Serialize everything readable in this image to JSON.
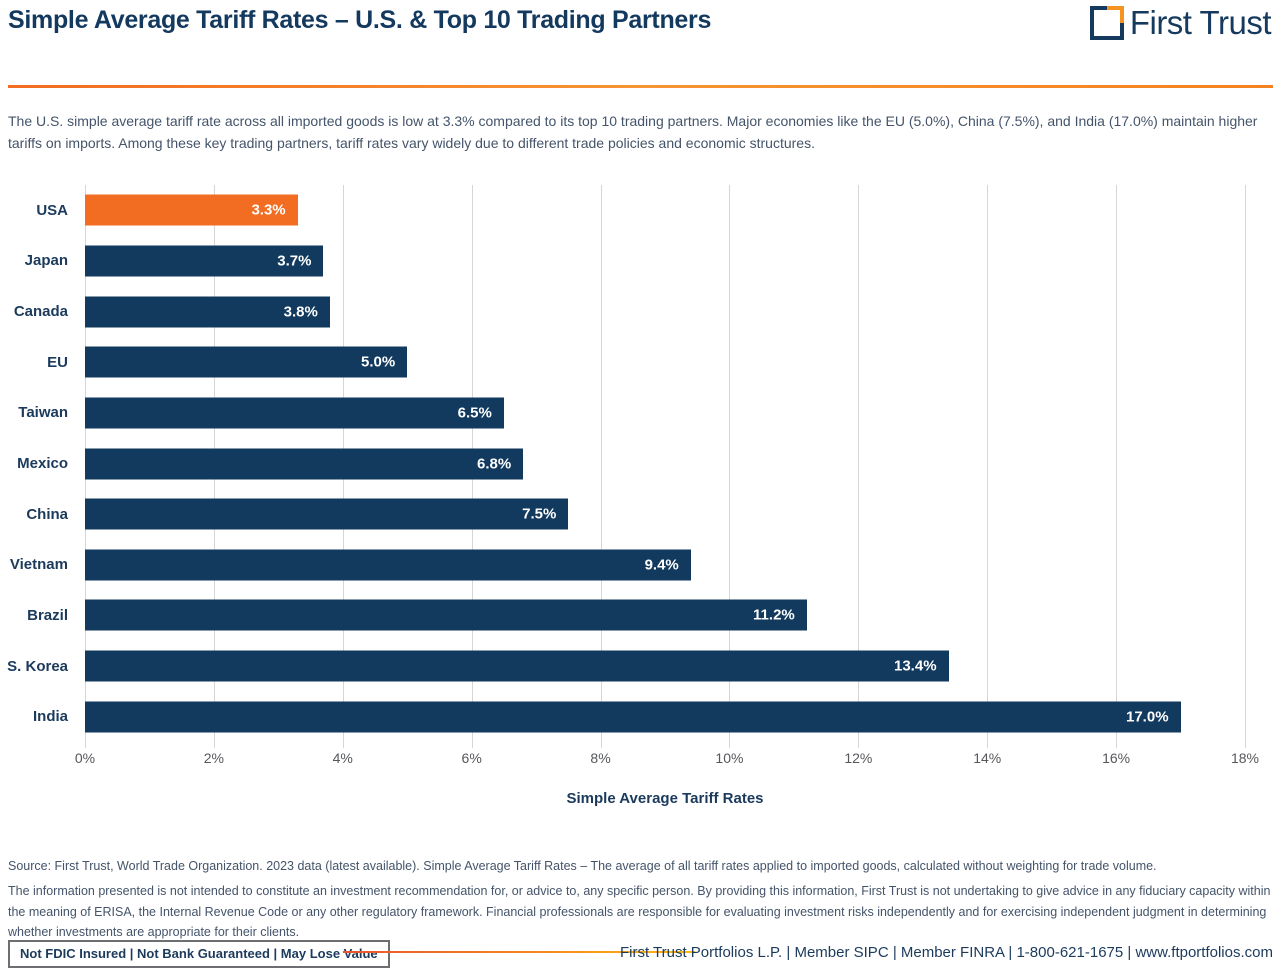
{
  "header": {
    "title": "Simple Average Tariff Rates – U.S. & Top 10 Trading Partners",
    "logo_text": "First Trust"
  },
  "intro": "The U.S. simple average tariff rate across all imported goods is low at 3.3% compared to its top 10 trading partners. Major economies like the EU (5.0%), China (7.5%), and India (17.0%) maintain higher tariffs on imports. Among these key trading partners, tariff rates vary widely due to different trade policies and economic structures.",
  "chart_data": {
    "type": "bar",
    "orientation": "horizontal",
    "title": "Simple Average Tariff Rates – U.S. & Top 10 Trading Partners",
    "categories": [
      "USA",
      "Japan",
      "Canada",
      "EU",
      "Taiwan",
      "Mexico",
      "China",
      "Vietnam",
      "Brazil",
      "S. Korea",
      "India"
    ],
    "values": [
      3.3,
      3.7,
      3.8,
      5.0,
      6.5,
      6.8,
      7.5,
      9.4,
      11.2,
      13.4,
      17.0
    ],
    "value_labels": [
      "3.3%",
      "3.7%",
      "3.8%",
      "5.0%",
      "6.5%",
      "6.8%",
      "7.5%",
      "9.4%",
      "11.2%",
      "13.4%",
      "17.0%"
    ],
    "xlabel": "Simple Average Tariff Rates",
    "xlim": [
      0,
      18
    ],
    "x_ticks": [
      "0%",
      "2%",
      "4%",
      "6%",
      "8%",
      "10%",
      "12%",
      "14%",
      "16%",
      "18%"
    ],
    "grid": true,
    "legend": false,
    "highlight_category": "USA",
    "colors": {
      "default_bar": "#12395E",
      "highlight_bar": "#F26C21",
      "navy_text": "#1B3A5C",
      "orange_accent": "#F58220",
      "gridline": "#D6D6D6"
    }
  },
  "footer": {
    "source": "Source: First Trust, World Trade Organization. 2023 data (latest available). Simple Average Tariff Rates – The average of all tariff rates applied to imported goods, calculated without weighting for trade volume.",
    "disclaimer": "The information presented is not intended to constitute an investment recommendation for, or advice to, any specific person. By providing this information, First Trust is not undertaking to give advice in any fiduciary capacity within the meaning of ERISA, the Internal Revenue Code or any other regulatory framework. Financial professionals are responsible for evaluating investment risks independently and for exercising independent judgment in determining whether investments are appropriate for their clients.",
    "compliance_badge": "Not FDIC Insured | Not Bank Guaranteed | May Lose Value",
    "company_line": "First Trust Portfolios L.P. | Member SIPC | Member FINRA | 1-800-621-1675 | www.ftportfolios.com"
  }
}
